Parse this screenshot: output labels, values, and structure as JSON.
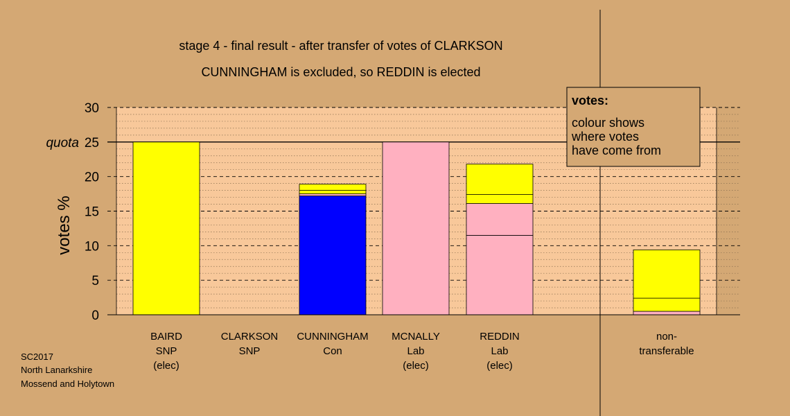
{
  "chart_data": {
    "type": "bar",
    "stacked": true,
    "title": "stage 4 - final result - after transfer of votes of CLARKSON",
    "subtitle": "CUNNINGHAM is excluded, so REDDIN is elected",
    "ylabel": "votes %",
    "ylim": [
      0,
      30
    ],
    "yticks": [
      0,
      5,
      10,
      15,
      20,
      25,
      30
    ],
    "quota": {
      "value": 25,
      "label": "quota"
    },
    "grid": true,
    "colors": {
      "SNP": "#ffff00",
      "Con": "#0000ff",
      "Lab": "#ffb0c0",
      "plot_bg": "#f8c89a",
      "page_bg": "#d4a874"
    },
    "categories": [
      {
        "label": [
          "BAIRD",
          "SNP",
          "(elec)"
        ],
        "segments": [
          {
            "party": "SNP",
            "value": 25.0
          }
        ]
      },
      {
        "label": [
          "CLARKSON",
          "SNP"
        ],
        "segments": []
      },
      {
        "label": [
          "CUNNINGHAM",
          "Con"
        ],
        "segments": [
          {
            "party": "Con",
            "value": 17.2
          },
          {
            "party": "Lab",
            "value": 0.3
          },
          {
            "party": "SNP",
            "value": 0.5
          },
          {
            "party": "SNP",
            "value": 0.9
          }
        ]
      },
      {
        "label": [
          "MCNALLY",
          "Lab",
          "(elec)"
        ],
        "segments": [
          {
            "party": "Lab",
            "value": 25.0
          }
        ]
      },
      {
        "label": [
          "REDDIN",
          "Lab",
          "(elec)"
        ],
        "segments": [
          {
            "party": "Lab",
            "value": 11.5
          },
          {
            "party": "Lab",
            "value": 4.6
          },
          {
            "party": "SNP",
            "value": 1.3
          },
          {
            "party": "SNP",
            "value": 4.4
          }
        ]
      },
      {
        "label": [
          "non-",
          "transferable"
        ],
        "segments": [
          {
            "party": "Lab",
            "value": 0.5
          },
          {
            "party": "SNP",
            "value": 1.9
          },
          {
            "party": "SNP",
            "value": 7.0
          }
        ]
      }
    ],
    "legend": {
      "title": "votes:",
      "lines": [
        "colour shows",
        "where votes",
        "have come from"
      ],
      "placement": "top-right"
    }
  },
  "footer": {
    "lines": [
      "SC2017",
      "North Lanarkshire",
      "Mossend and Holytown"
    ]
  }
}
